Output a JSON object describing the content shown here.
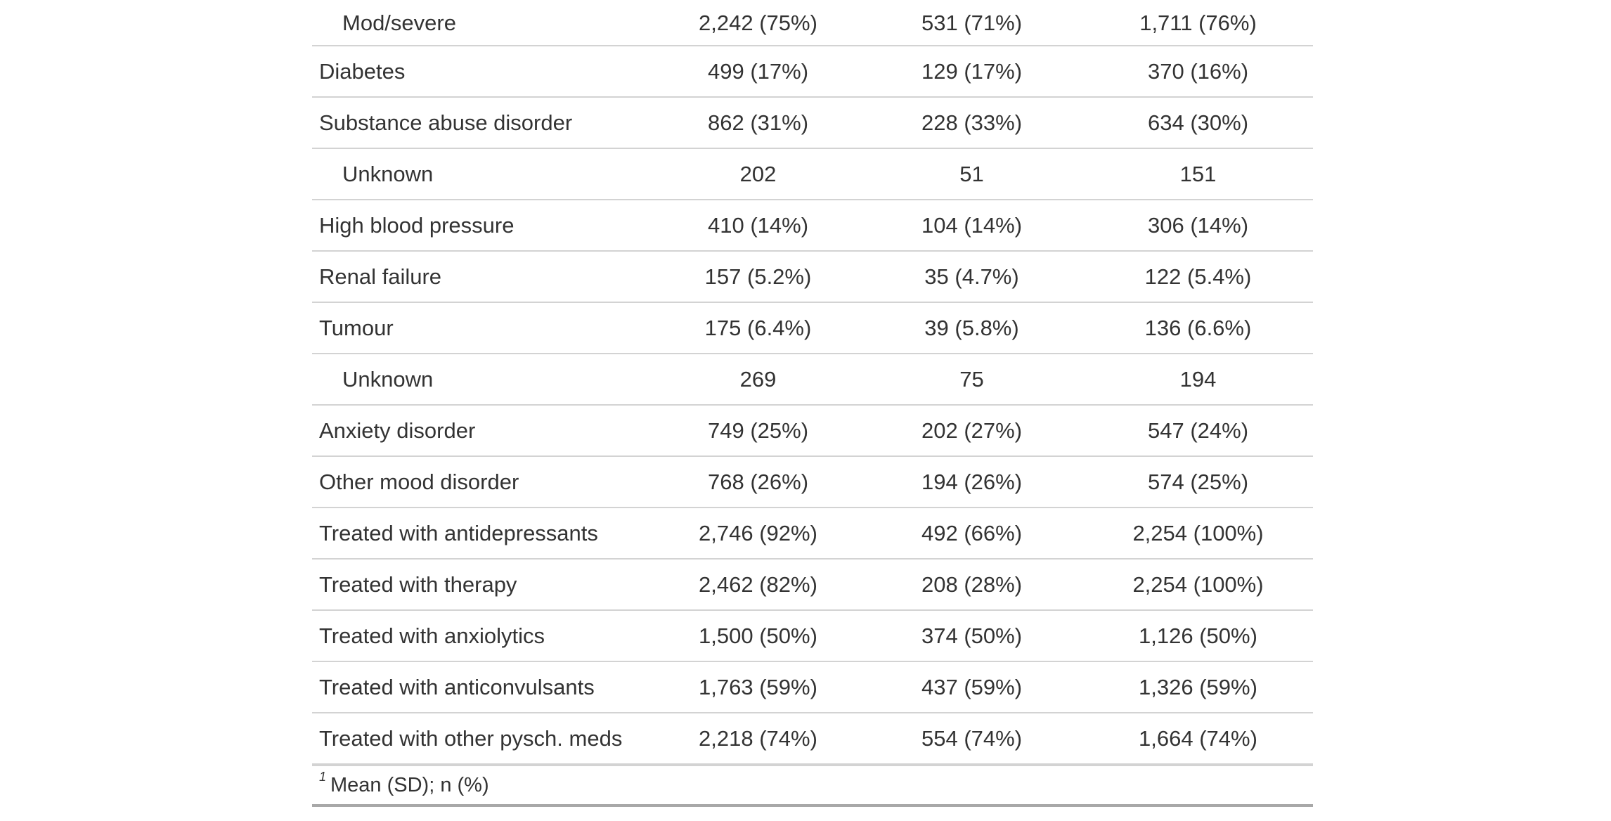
{
  "table": {
    "rows": [
      {
        "label": "Mod/severe",
        "indent": true,
        "cells": [
          "2,242 (75%)",
          "531 (71%)",
          "1,711 (76%)"
        ]
      },
      {
        "label": "Diabetes",
        "indent": false,
        "cells": [
          "499 (17%)",
          "129 (17%)",
          "370 (16%)"
        ]
      },
      {
        "label": "Substance abuse disorder",
        "indent": false,
        "cells": [
          "862 (31%)",
          "228 (33%)",
          "634 (30%)"
        ]
      },
      {
        "label": "Unknown",
        "indent": true,
        "cells": [
          "202",
          "51",
          "151"
        ]
      },
      {
        "label": "High blood pressure",
        "indent": false,
        "cells": [
          "410 (14%)",
          "104 (14%)",
          "306 (14%)"
        ]
      },
      {
        "label": "Renal failure",
        "indent": false,
        "cells": [
          "157 (5.2%)",
          "35 (4.7%)",
          "122 (5.4%)"
        ]
      },
      {
        "label": "Tumour",
        "indent": false,
        "cells": [
          "175 (6.4%)",
          "39 (5.8%)",
          "136 (6.6%)"
        ]
      },
      {
        "label": "Unknown",
        "indent": true,
        "cells": [
          "269",
          "75",
          "194"
        ]
      },
      {
        "label": "Anxiety disorder",
        "indent": false,
        "cells": [
          "749 (25%)",
          "202 (27%)",
          "547 (24%)"
        ]
      },
      {
        "label": "Other mood disorder",
        "indent": false,
        "cells": [
          "768 (26%)",
          "194 (26%)",
          "574 (25%)"
        ]
      },
      {
        "label": "Treated with antidepressants",
        "indent": false,
        "cells": [
          "2,746 (92%)",
          "492 (66%)",
          "2,254 (100%)"
        ]
      },
      {
        "label": "Treated with therapy",
        "indent": false,
        "cells": [
          "2,462 (82%)",
          "208 (28%)",
          "2,254 (100%)"
        ]
      },
      {
        "label": "Treated with anxiolytics",
        "indent": false,
        "cells": [
          "1,500 (50%)",
          "374 (50%)",
          "1,126 (50%)"
        ]
      },
      {
        "label": "Treated with anticonvulsants",
        "indent": false,
        "cells": [
          "1,763 (59%)",
          "437 (59%)",
          "1,326 (59%)"
        ]
      },
      {
        "label": "Treated with other pysch. meds",
        "indent": false,
        "cells": [
          "2,218 (74%)",
          "554 (74%)",
          "1,664 (74%)"
        ]
      }
    ],
    "footnote": {
      "marker": "1",
      "text": "Mean (SD); n (%)"
    }
  }
}
